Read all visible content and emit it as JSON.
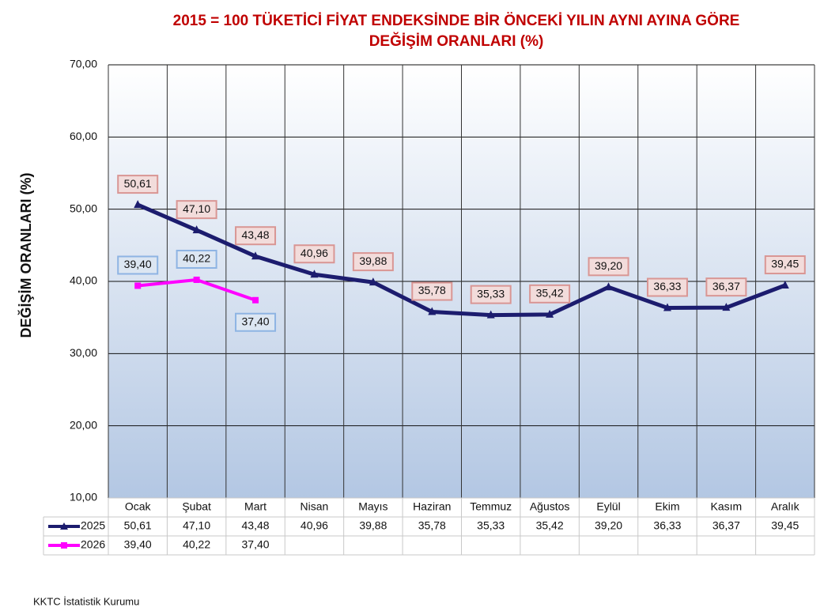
{
  "chart_data": {
    "type": "line",
    "title": [
      "2015 = 100 TÜKETİCİ FİYAT ENDEKSİNDE BİR ÖNCEKİ YILIN AYNI AYINA GÖRE",
      "DEĞİŞİM ORANLARI (%)"
    ],
    "y_label": "DEĞİŞİM ORANLARI (%)",
    "categories": [
      "Ocak",
      "Şubat",
      "Mart",
      "Nisan",
      "Mayıs",
      "Haziran",
      "Temmuz",
      "Ağustos",
      "Eylül",
      "Ekim",
      "Kasım",
      "Aralık"
    ],
    "series": [
      {
        "name": "2025",
        "color": "#1c1c6e",
        "values": [
          50.61,
          47.1,
          43.48,
          40.96,
          39.88,
          35.78,
          35.33,
          35.42,
          39.2,
          36.33,
          36.37,
          39.45
        ],
        "value_labels": [
          "50,61",
          "47,10",
          "43,48",
          "40,96",
          "39,88",
          "35,78",
          "35,33",
          "35,42",
          "39,20",
          "36,33",
          "36,37",
          "39,45"
        ]
      },
      {
        "name": "2026",
        "color": "#ff00ff",
        "values": [
          39.4,
          40.22,
          37.4,
          null,
          null,
          null,
          null,
          null,
          null,
          null,
          null,
          null
        ],
        "value_labels": [
          "39,40",
          "40,22",
          "37,40",
          null,
          null,
          null,
          null,
          null,
          null,
          null,
          null,
          null
        ]
      }
    ],
    "ylim": [
      10,
      70
    ],
    "yticks": [
      {
        "value": 10,
        "label": "10,00"
      },
      {
        "value": 20,
        "label": "20,00"
      },
      {
        "value": 30,
        "label": "30,00"
      },
      {
        "value": 40,
        "label": "40,00"
      },
      {
        "value": 50,
        "label": "50,00"
      },
      {
        "value": 60,
        "label": "60,00"
      },
      {
        "value": 70,
        "label": "70,00"
      }
    ],
    "grid": true
  },
  "source": "KKTC İstatistik Kurumu"
}
